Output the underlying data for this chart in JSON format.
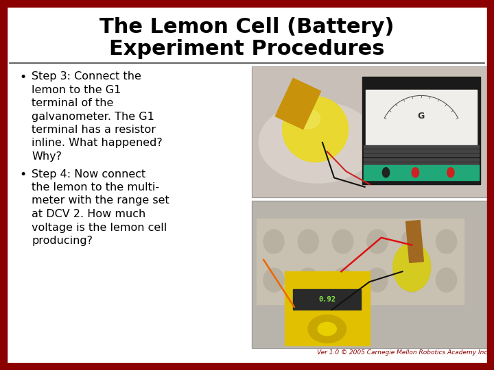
{
  "title_line1": "The Lemon Cell (Battery)",
  "title_line2": "Experiment Procedures",
  "title_fontsize": 22,
  "bullet1_lines": [
    "Step 3: Connect the",
    "lemon to the G1",
    "terminal of the",
    "galvanometer. The G1",
    "terminal has a resistor",
    "inline. What happened?",
    "Why?"
  ],
  "bullet2_lines": [
    "Step 4: Now connect",
    "the lemon to the multi-",
    "meter with the range set",
    "at DCV 2. How much",
    "voltage is the lemon cell",
    "producing?"
  ],
  "footer_text": "Ver 1.0 © 2005 Carnegie Mellon Robotics Academy Inc",
  "bg_color": "#ffffff",
  "border_color": "#8B0000",
  "title_color": "#000000",
  "text_color": "#000000",
  "footer_color": "#8B0000",
  "text_fontsize": 11.5,
  "footer_fontsize": 6.5,
  "border_width": 10,
  "separator_color": "#444444",
  "photo1_bg": "#c0b8b0",
  "photo2_bg": "#b8b0a8"
}
